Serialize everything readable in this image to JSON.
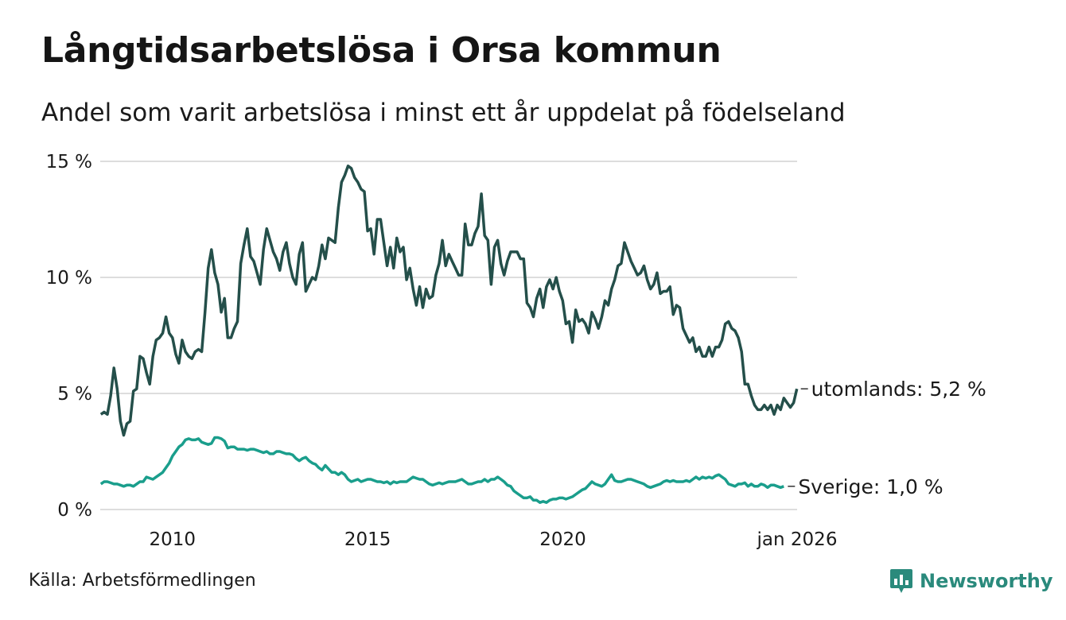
{
  "title": "Långtidsarbetslösa i Orsa kommun",
  "subtitle": "Andel som varit arbetslösa i minst ett år uppdelat på födelseland",
  "source": "Källa: Arbetsförmedlingen",
  "brand": "Newsworthy",
  "colors": {
    "utomlands": "#244f4a",
    "sverige": "#1a9e8c",
    "grid": "#dddddd",
    "brand": "#2a8a7c"
  },
  "chart_data": {
    "type": "line",
    "title": "Långtidsarbetslösa i Orsa kommun",
    "xlabel": "",
    "ylabel": "",
    "ylim": [
      0,
      15
    ],
    "xlim": [
      2008.15,
      2026.0
    ],
    "y_ticks": [
      0,
      5,
      10,
      15
    ],
    "y_tick_labels": [
      "0 %",
      "5 %",
      "10 %",
      "15 %"
    ],
    "x_ticks": [
      2010,
      2015,
      2020,
      2026
    ],
    "x_tick_labels": [
      "2010",
      "2015",
      "2020",
      "jan 2026"
    ],
    "x_start": 2008.167,
    "x_step": 0.0833,
    "series": [
      {
        "name": "utomlands",
        "end_label": "utomlands: 5,2 %",
        "values": [
          4.1,
          4.2,
          4.1,
          4.9,
          6.1,
          5.2,
          3.8,
          3.2,
          3.7,
          3.8,
          5.1,
          5.2,
          6.6,
          6.5,
          5.9,
          5.4,
          6.6,
          7.3,
          7.4,
          7.6,
          8.3,
          7.6,
          7.4,
          6.7,
          6.3,
          7.3,
          6.8,
          6.6,
          6.5,
          6.8,
          6.9,
          6.8,
          8.5,
          10.4,
          11.2,
          10.2,
          9.7,
          8.5,
          9.1,
          7.4,
          7.4,
          7.8,
          8.1,
          10.6,
          11.4,
          12.1,
          10.9,
          10.7,
          10.2,
          9.7,
          11.2,
          12.1,
          11.6,
          11.1,
          10.8,
          10.3,
          11.1,
          11.5,
          10.6,
          10.0,
          9.7,
          11.0,
          11.5,
          9.4,
          9.7,
          10.0,
          9.9,
          10.5,
          11.4,
          10.8,
          11.7,
          11.6,
          11.5,
          13.0,
          14.1,
          14.4,
          14.8,
          14.7,
          14.3,
          14.1,
          13.8,
          13.7,
          12.0,
          12.1,
          11.0,
          12.5,
          12.5,
          11.5,
          10.5,
          11.3,
          10.4,
          11.7,
          11.1,
          11.3,
          9.9,
          10.4,
          9.5,
          8.8,
          9.6,
          8.7,
          9.5,
          9.1,
          9.2,
          10.1,
          10.6,
          11.6,
          10.5,
          11.0,
          10.7,
          10.4,
          10.1,
          10.1,
          12.3,
          11.4,
          11.4,
          11.9,
          12.2,
          13.6,
          11.8,
          11.6,
          9.7,
          11.3,
          11.6,
          10.6,
          10.1,
          10.7,
          11.1,
          11.1,
          11.1,
          10.8,
          10.8,
          8.9,
          8.7,
          8.3,
          9.1,
          9.5,
          8.7,
          9.6,
          9.9,
          9.5,
          10.0,
          9.4,
          9.0,
          8.0,
          8.1,
          7.2,
          8.6,
          8.1,
          8.2,
          8.0,
          7.6,
          8.5,
          8.2,
          7.8,
          8.3,
          9.0,
          8.8,
          9.5,
          9.9,
          10.5,
          10.6,
          11.5,
          11.1,
          10.7,
          10.4,
          10.1,
          10.2,
          10.5,
          9.9,
          9.5,
          9.7,
          10.2,
          9.3,
          9.4,
          9.4,
          9.6,
          8.4,
          8.8,
          8.7,
          7.8,
          7.5,
          7.2,
          7.4,
          6.8,
          7.0,
          6.6,
          6.6,
          7.0,
          6.6,
          7.0,
          7.0,
          7.3,
          8.0,
          8.1,
          7.8,
          7.7,
          7.4,
          6.8,
          5.4,
          5.4,
          4.9,
          4.5,
          4.3,
          4.3,
          4.5,
          4.3,
          4.5,
          4.1,
          4.5,
          4.3,
          4.8,
          4.6,
          4.4,
          4.6,
          5.2
        ]
      },
      {
        "name": "Sverige",
        "end_label": "Sverige: 1,0 %",
        "values": [
          1.1,
          1.2,
          1.2,
          1.15,
          1.1,
          1.1,
          1.05,
          1.0,
          1.05,
          1.05,
          1.0,
          1.1,
          1.2,
          1.2,
          1.4,
          1.35,
          1.3,
          1.4,
          1.5,
          1.6,
          1.8,
          2.0,
          2.3,
          2.5,
          2.7,
          2.8,
          3.0,
          3.05,
          3.0,
          3.0,
          3.05,
          2.9,
          2.85,
          2.8,
          2.85,
          3.1,
          3.1,
          3.05,
          2.95,
          2.65,
          2.7,
          2.7,
          2.6,
          2.6,
          2.6,
          2.55,
          2.6,
          2.6,
          2.55,
          2.5,
          2.45,
          2.5,
          2.4,
          2.4,
          2.5,
          2.5,
          2.45,
          2.4,
          2.4,
          2.35,
          2.2,
          2.1,
          2.2,
          2.25,
          2.1,
          2.0,
          1.95,
          1.8,
          1.7,
          1.9,
          1.75,
          1.6,
          1.6,
          1.5,
          1.6,
          1.5,
          1.3,
          1.2,
          1.25,
          1.3,
          1.2,
          1.25,
          1.3,
          1.3,
          1.25,
          1.2,
          1.2,
          1.15,
          1.2,
          1.1,
          1.2,
          1.15,
          1.2,
          1.2,
          1.2,
          1.3,
          1.4,
          1.35,
          1.3,
          1.3,
          1.2,
          1.1,
          1.05,
          1.1,
          1.15,
          1.1,
          1.15,
          1.2,
          1.2,
          1.2,
          1.25,
          1.3,
          1.2,
          1.1,
          1.1,
          1.15,
          1.2,
          1.2,
          1.3,
          1.2,
          1.3,
          1.3,
          1.4,
          1.3,
          1.2,
          1.05,
          1.0,
          0.8,
          0.7,
          0.6,
          0.5,
          0.5,
          0.55,
          0.4,
          0.4,
          0.3,
          0.35,
          0.3,
          0.4,
          0.45,
          0.45,
          0.5,
          0.5,
          0.45,
          0.5,
          0.55,
          0.65,
          0.75,
          0.85,
          0.9,
          1.05,
          1.2,
          1.1,
          1.05,
          1.0,
          1.1,
          1.3,
          1.5,
          1.25,
          1.2,
          1.2,
          1.25,
          1.3,
          1.3,
          1.25,
          1.2,
          1.15,
          1.1,
          1.0,
          0.95,
          1.0,
          1.05,
          1.1,
          1.2,
          1.25,
          1.2,
          1.25,
          1.2,
          1.2,
          1.2,
          1.25,
          1.2,
          1.3,
          1.4,
          1.3,
          1.4,
          1.35,
          1.4,
          1.35,
          1.45,
          1.5,
          1.4,
          1.3,
          1.1,
          1.05,
          1.0,
          1.1,
          1.1,
          1.15,
          1.0,
          1.1,
          1.0,
          1.0,
          1.1,
          1.05,
          0.95,
          1.05,
          1.05,
          1.0,
          0.95,
          1.0
        ]
      }
    ]
  }
}
